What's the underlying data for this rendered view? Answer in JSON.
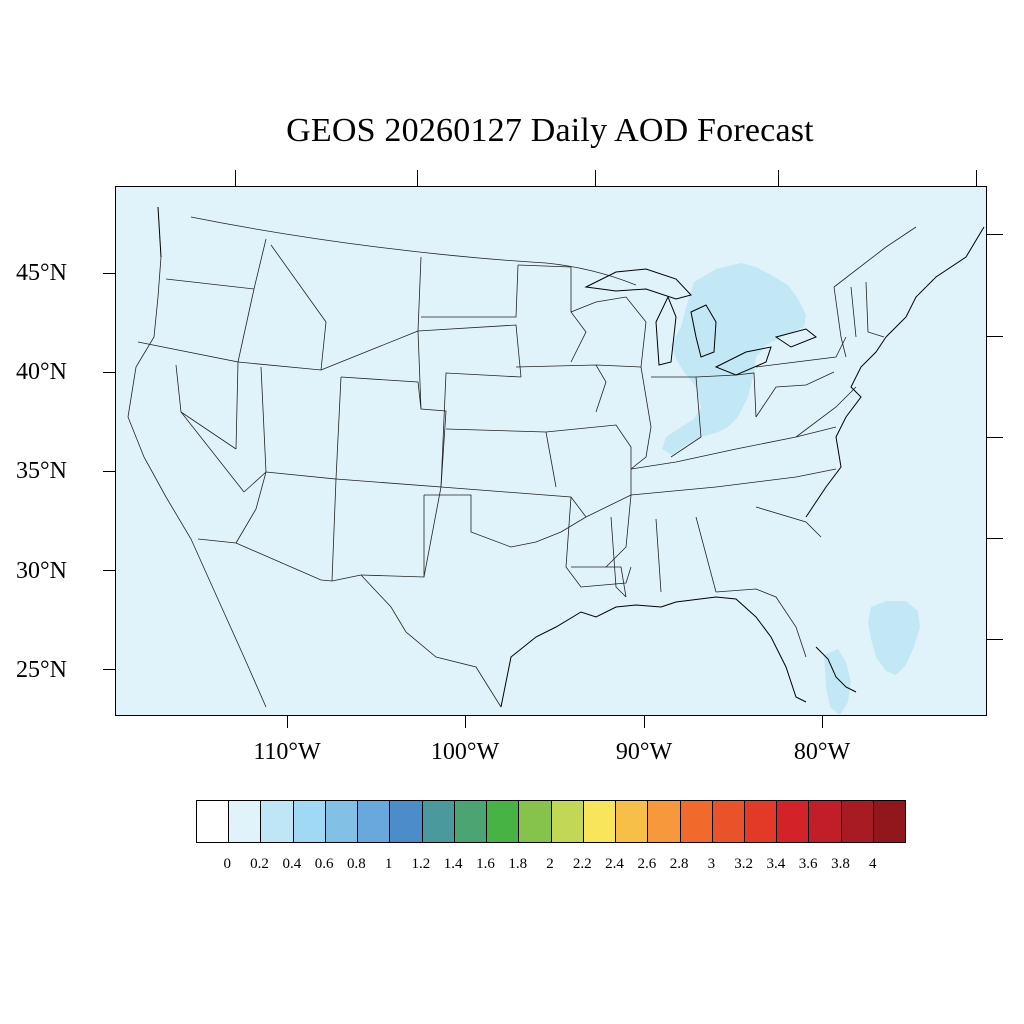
{
  "title": "GEOS 20260127 Daily AOD Forecast",
  "map": {
    "region": "Contiguous United States",
    "projection": "Lambert conformal",
    "background_color": "#e0f3fb",
    "lat_labels": [
      "45°N",
      "40°N",
      "35°N",
      "30°N",
      "25°N"
    ],
    "lon_labels": [
      "110°W",
      "100°W",
      "90°W",
      "80°W"
    ],
    "elevated_aod_regions": [
      "Great Lakes / Ohio Valley",
      "Bahamas"
    ],
    "elevated_aod_color": "#c2e8f6"
  },
  "colorbar": {
    "colors": [
      "#ffffff",
      "#e0f3fb",
      "#bee6f7",
      "#9fd9f4",
      "#82c0e5",
      "#68a8dc",
      "#4b8cc9",
      "#4a9a9d",
      "#4aa573",
      "#48b345",
      "#86c34b",
      "#c3d756",
      "#f9e55b",
      "#f8bf48",
      "#f6983b",
      "#f26a2b",
      "#ea5329",
      "#e33a28",
      "#d42328",
      "#c11e27",
      "#a81b22",
      "#92171d"
    ],
    "labels": [
      "0",
      "0.2",
      "0.4",
      "0.6",
      "0.8",
      "1",
      "1.2",
      "1.4",
      "1.6",
      "1.8",
      "2",
      "2.2",
      "2.4",
      "2.6",
      "2.8",
      "3",
      "3.2",
      "3.4",
      "3.6",
      "3.8",
      "4"
    ]
  }
}
